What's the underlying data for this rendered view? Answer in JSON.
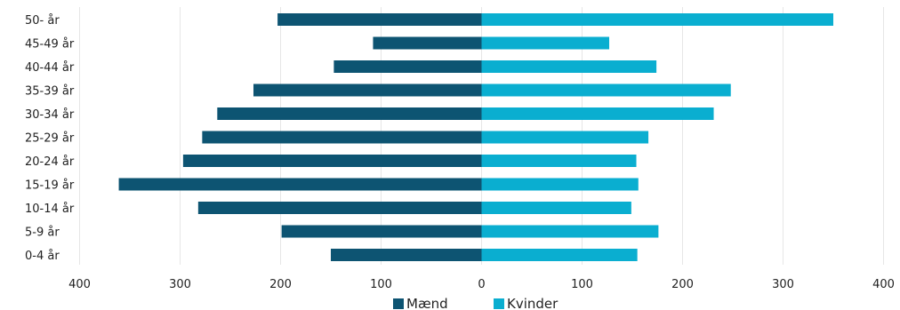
{
  "chart_data": {
    "type": "bar",
    "orientation": "horizontal-diverging",
    "title": "",
    "xlabel": "",
    "ylabel": "",
    "xlim": [
      -400,
      400
    ],
    "x_ticks": [
      -400,
      -300,
      -200,
      -100,
      0,
      100,
      200,
      300,
      400
    ],
    "x_tick_labels": [
      "400",
      "300",
      "200",
      "100",
      "0",
      "100",
      "200",
      "300",
      "400"
    ],
    "grid": "vertical",
    "legend_position": "bottom-center",
    "categories": [
      "50- år",
      "45-49 år",
      "40-44 år",
      "35-39 år",
      "30-34 år",
      "25-29 år",
      "20-24 år",
      "15-19 år",
      "10-14 år",
      "5-9 år",
      "0-4 år"
    ],
    "series": [
      {
        "name": "Mænd",
        "color": "#0d5472",
        "direction": "left",
        "values": [
          203,
          108,
          147,
          227,
          263,
          278,
          297,
          361,
          282,
          199,
          150
        ]
      },
      {
        "name": "Kvinder",
        "color": "#0aaed0",
        "direction": "right",
        "values": [
          350,
          127,
          174,
          248,
          231,
          166,
          154,
          156,
          149,
          176,
          155
        ]
      }
    ]
  }
}
